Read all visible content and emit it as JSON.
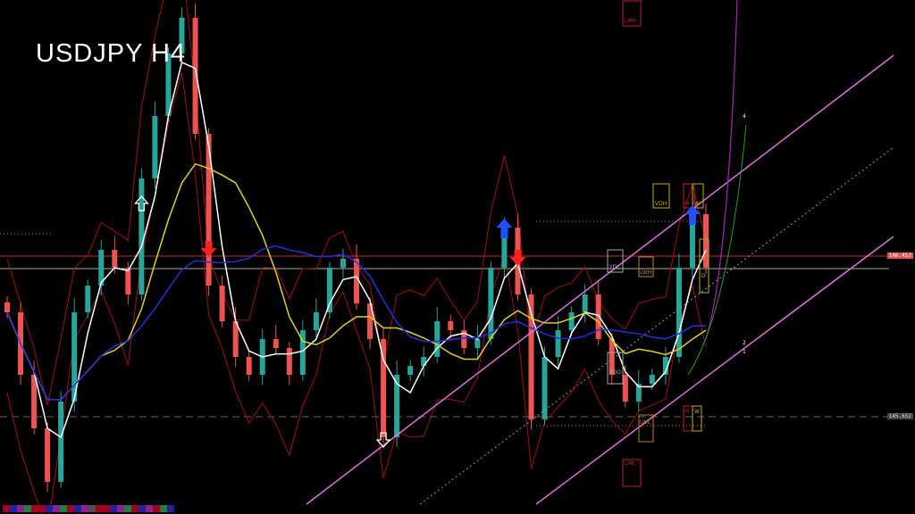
{
  "title": "USDJPY H4",
  "price_labels": [
    {
      "value": "146.452",
      "color": "#e05050"
    },
    {
      "value": "145.652",
      "color": "#555555"
    }
  ],
  "level_boxes": [
    "VDH",
    "M",
    "W",
    "YDC",
    "LWH",
    "D",
    "D",
    "YDO",
    "LWL",
    "M",
    "W",
    "LML",
    "LMH"
  ],
  "wave_labels": [
    "4",
    "2",
    "1"
  ],
  "colors": {
    "bull": "#26a69a",
    "bear": "#ef5350",
    "channel": "#e070e0",
    "ma_fast": "#ffffff",
    "ma_mid": "#e0d020",
    "ma_slow": "#2030e0",
    "band": "#a01010",
    "signal_down": "#ff2020",
    "signal_up": "#2050ff"
  },
  "chart_data": {
    "type": "candlestick",
    "symbol": "USDJPY",
    "timeframe": "H4",
    "closes": [
      146.172,
      145.861,
      145.594,
      145.328,
      145.728,
      146.172,
      146.305,
      146.483,
      146.394,
      146.261,
      146.839,
      147.15,
      147.461,
      147.639,
      147.061,
      146.305,
      146.128,
      145.95,
      145.861,
      146.039,
      145.994,
      145.861,
      146.083,
      146.172,
      146.394,
      146.439,
      146.216,
      146.039,
      145.55,
      145.861,
      145.905,
      145.95,
      146.128,
      146.083,
      145.994,
      146.039,
      146.394,
      146.594,
      146.261,
      145.639,
      145.95,
      146.083,
      146.172,
      146.261,
      146.039,
      145.861,
      145.728,
      145.816,
      145.861,
      145.95,
      146.394,
      146.661,
      146.394
    ],
    "horizontal_levels": [
      146.452,
      146.39,
      145.652
    ],
    "signals": [
      {
        "type": "sell",
        "index": 15
      },
      {
        "type": "sell",
        "index": 38
      },
      {
        "type": "buy",
        "index": 37
      },
      {
        "type": "buy",
        "index": 51
      },
      {
        "type": "buy-hollow",
        "index": 10
      },
      {
        "type": "sell-hollow",
        "index": 28
      }
    ]
  },
  "bottom_strip_colors": [
    "#a00020",
    "#2020a0",
    "#902090",
    "#208040",
    "#a00020",
    "#a00020",
    "#2020a0",
    "#902090",
    "#208040",
    "#a00020",
    "#2020a0",
    "#902090",
    "#505050",
    "#a00020",
    "#a00020",
    "#2020a0",
    "#902090",
    "#208040",
    "#a00020",
    "#2020a0",
    "#902090",
    "#a00020",
    "#208040",
    "#2020a0"
  ]
}
